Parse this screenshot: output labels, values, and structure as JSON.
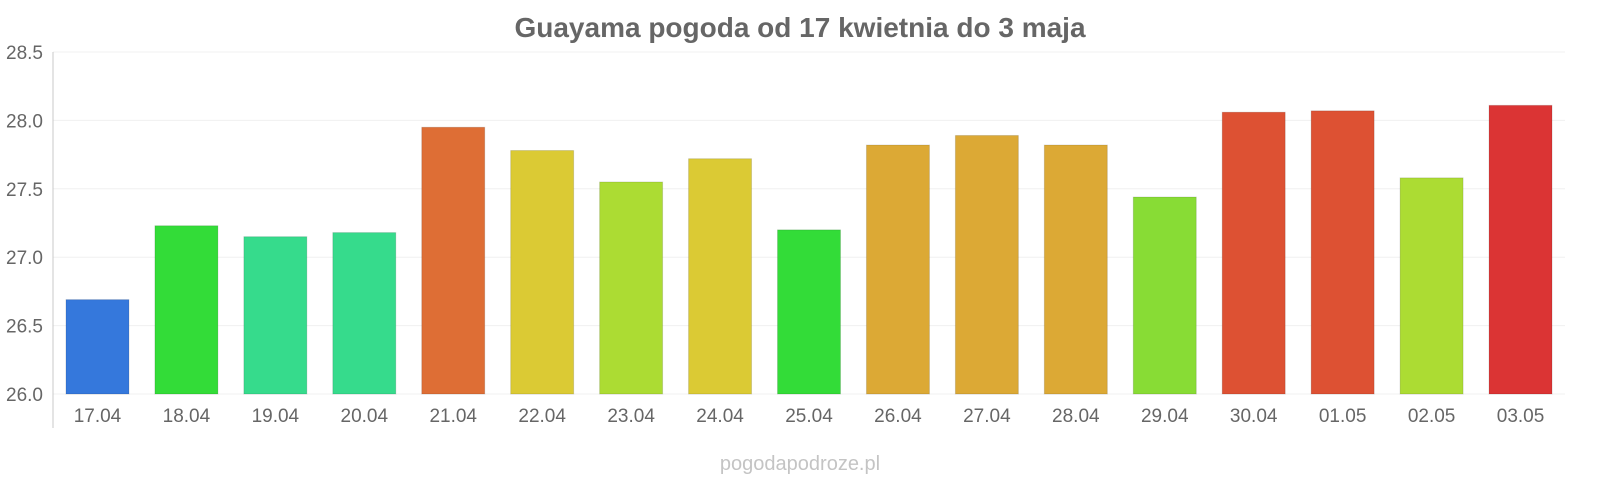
{
  "chart_data": {
    "type": "bar",
    "title": "Guayama pogoda od 17 kwietnia do 3 maja",
    "xlabel": "",
    "ylabel": "",
    "ylim": [
      26.0,
      28.5
    ],
    "yticks": [
      "26.0",
      "26.5",
      "27.0",
      "27.5",
      "28.0",
      "28.5"
    ],
    "grid": true,
    "categories": [
      "17.04",
      "18.04",
      "19.04",
      "20.04",
      "21.04",
      "22.04",
      "23.04",
      "24.04",
      "25.04",
      "26.04",
      "27.04",
      "28.04",
      "29.04",
      "30.04",
      "01.05",
      "02.05",
      "03.05"
    ],
    "values": [
      26.69,
      27.23,
      27.15,
      27.18,
      27.95,
      27.78,
      27.55,
      27.72,
      27.2,
      27.82,
      27.89,
      27.82,
      27.44,
      28.06,
      28.07,
      27.58,
      28.11
    ],
    "colors": [
      "#3578dc",
      "#33dc38",
      "#36db8c",
      "#36db8c",
      "#de6e35",
      "#dbca34",
      "#acdc33",
      "#dbca34",
      "#33dc38",
      "#dca935",
      "#dca935",
      "#dca935",
      "#88dc35",
      "#dd5133",
      "#dd5133",
      "#acdc33",
      "#db3434"
    ]
  },
  "watermark": "pogodapodroze.pl"
}
